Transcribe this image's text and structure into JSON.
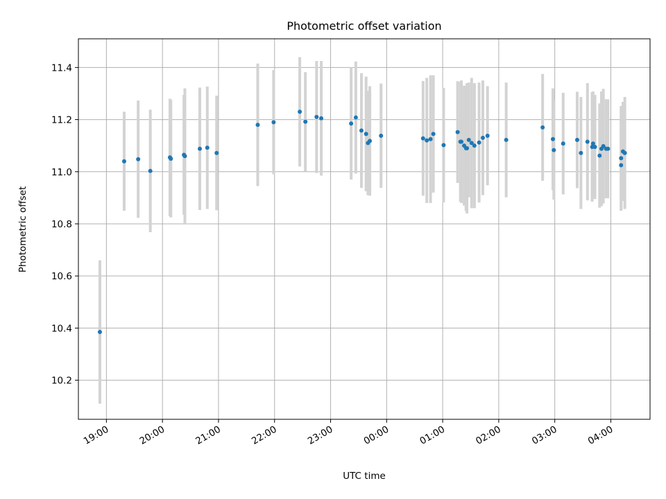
{
  "chart_data": {
    "type": "scatter",
    "title": "Photometric offset variation",
    "xlabel": "UTC time",
    "ylabel": "Photometric offset",
    "ylim": [
      10.05,
      11.51
    ],
    "yticks": [
      10.2,
      10.4,
      10.6,
      10.8,
      11.0,
      11.2,
      11.4
    ],
    "ytick_labels": [
      "10.2",
      "10.4",
      "10.6",
      "10.8",
      "11.0",
      "11.2",
      "11.4"
    ],
    "xlim": [
      "18:30",
      "04:42"
    ],
    "xticks": [
      "19:00",
      "20:00",
      "21:00",
      "22:00",
      "23:00",
      "00:00",
      "01:00",
      "02:00",
      "03:00",
      "04:00"
    ],
    "grid": true,
    "colors": {
      "points": "#1f77b4",
      "errorbars": "#d3d3d3",
      "grid": "#b0b0b0"
    },
    "series": [
      {
        "x": [
          "18:53",
          "19:19",
          "19:34",
          "19:47",
          "20:08",
          "20:09",
          "20:23",
          "20:24",
          "20:40",
          "20:48",
          "20:58",
          "21:42",
          "21:59",
          "22:27",
          "22:33",
          "22:45",
          "22:50",
          "23:22",
          "23:27",
          "23:33",
          "23:38",
          "23:40",
          "23:42",
          "23:54",
          "00:39",
          "00:43",
          "00:47",
          "00:50",
          "01:01",
          "01:16",
          "01:19",
          "01:20",
          "01:23",
          "01:25",
          "01:26",
          "01:28",
          "01:31",
          "01:34",
          "01:39",
          "01:43",
          "01:48",
          "02:08",
          "02:47",
          "02:58",
          "02:59",
          "03:09",
          "03:24",
          "03:28",
          "03:35",
          "03:40",
          "03:41",
          "03:43",
          "03:48",
          "03:50",
          "03:52",
          "03:55",
          "03:57",
          "04:11",
          "04:11",
          "04:13",
          "04:15"
        ],
        "y": [
          10.385,
          11.04,
          11.048,
          11.003,
          11.055,
          11.05,
          11.065,
          11.06,
          11.088,
          11.092,
          11.072,
          11.18,
          11.19,
          11.23,
          11.192,
          11.21,
          11.205,
          11.185,
          11.208,
          11.158,
          11.145,
          11.11,
          11.118,
          11.138,
          11.128,
          11.12,
          11.125,
          11.145,
          11.102,
          11.152,
          11.115,
          11.115,
          11.1,
          11.09,
          11.09,
          11.122,
          11.11,
          11.1,
          11.112,
          11.13,
          11.138,
          11.122,
          11.17,
          11.125,
          11.083,
          11.108,
          11.122,
          11.072,
          11.115,
          11.095,
          11.108,
          11.095,
          11.062,
          11.088,
          11.098,
          11.088,
          11.088,
          11.025,
          11.052,
          11.078,
          11.072
        ],
        "err": [
          0.275,
          0.19,
          0.225,
          0.235,
          0.225,
          0.225,
          0.23,
          0.26,
          0.235,
          0.235,
          0.22,
          0.235,
          0.2,
          0.21,
          0.19,
          0.215,
          0.22,
          0.215,
          0.215,
          0.22,
          0.22,
          0.2,
          0.21,
          0.2,
          0.22,
          0.24,
          0.245,
          0.225,
          0.22,
          0.195,
          0.23,
          0.235,
          0.23,
          0.24,
          0.25,
          0.22,
          0.25,
          0.24,
          0.23,
          0.22,
          0.19,
          0.22,
          0.205,
          0.195,
          0.19,
          0.195,
          0.185,
          0.215,
          0.225,
          0.21,
          0.2,
          0.2,
          0.2,
          0.22,
          0.22,
          0.19,
          0.19,
          0.175,
          0.2,
          0.19,
          0.215
        ]
      }
    ]
  }
}
